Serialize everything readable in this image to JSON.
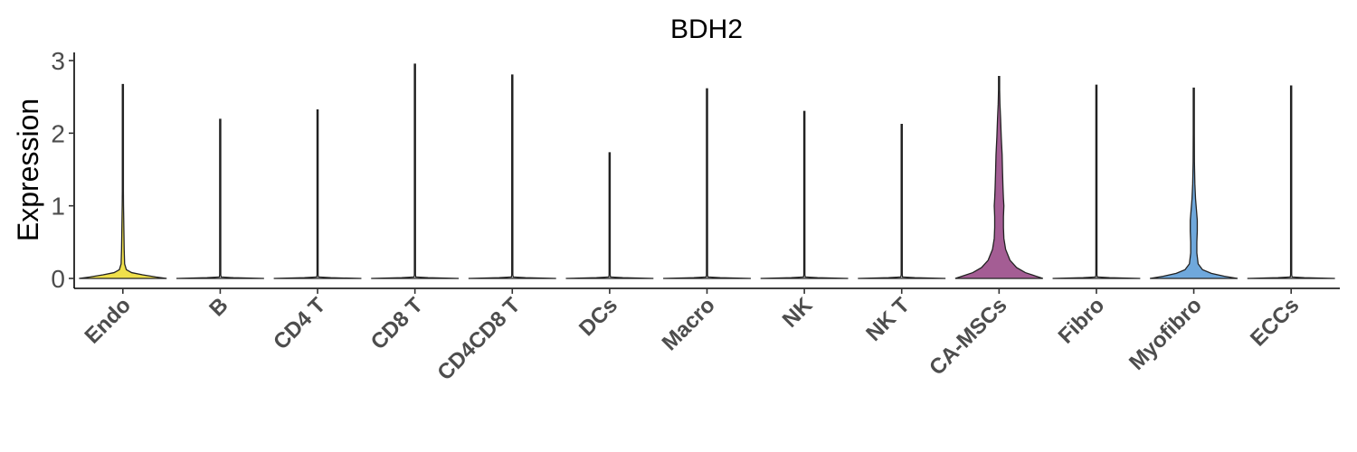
{
  "chart_data": {
    "type": "violin",
    "title": "BDH2",
    "xlabel": "",
    "ylabel": "Expression",
    "ylim": [
      -0.15,
      3.1
    ],
    "yticks": [
      0,
      1,
      2,
      3
    ],
    "grid": false,
    "legend": "none",
    "categories": [
      "Endo",
      "B",
      "CD4 T",
      "CD8 T",
      "CD4CD8 T",
      "DCs",
      "Macro",
      "NK",
      "NK T",
      "CA-MSCs",
      "Fibro",
      "Myofibro",
      "ECCs"
    ],
    "series": [
      {
        "category": "Endo",
        "max": 2.67,
        "color": "#f0e04b",
        "profile": [
          [
            0,
            1.0
          ],
          [
            0.02,
            0.75
          ],
          [
            0.05,
            0.45
          ],
          [
            0.08,
            0.2
          ],
          [
            0.12,
            0.08
          ],
          [
            0.2,
            0.04
          ],
          [
            0.4,
            0.03
          ],
          [
            0.6,
            0.025
          ],
          [
            0.8,
            0.02
          ],
          [
            1.0,
            0.015
          ],
          [
            1.2,
            0.012
          ],
          [
            1.4,
            0.01
          ],
          [
            1.6,
            0.006
          ],
          [
            1.8,
            0.003
          ],
          [
            2.67,
            0.0
          ]
        ]
      },
      {
        "category": "B",
        "max": 2.19,
        "color": "#ffffff",
        "profile": [
          [
            0,
            1.0
          ],
          [
            0.01,
            0.3
          ],
          [
            0.02,
            0.02
          ],
          [
            0.05,
            0.0
          ],
          [
            2.19,
            0.0
          ]
        ]
      },
      {
        "category": "CD4 T",
        "max": 2.32,
        "color": "#ffffff",
        "profile": [
          [
            0,
            1.0
          ],
          [
            0.01,
            0.3
          ],
          [
            0.02,
            0.02
          ],
          [
            0.05,
            0.0
          ],
          [
            2.32,
            0.0
          ]
        ]
      },
      {
        "category": "CD8 T",
        "max": 2.95,
        "color": "#ffffff",
        "profile": [
          [
            0,
            1.0
          ],
          [
            0.01,
            0.3
          ],
          [
            0.02,
            0.02
          ],
          [
            0.05,
            0.0
          ],
          [
            2.95,
            0.0
          ]
        ]
      },
      {
        "category": "CD4CD8 T",
        "max": 2.8,
        "color": "#ffffff",
        "profile": [
          [
            0,
            1.0
          ],
          [
            0.01,
            0.3
          ],
          [
            0.02,
            0.02
          ],
          [
            0.05,
            0.0
          ],
          [
            2.8,
            0.0
          ]
        ]
      },
      {
        "category": "DCs",
        "max": 1.73,
        "color": "#ffffff",
        "profile": [
          [
            0,
            1.0
          ],
          [
            0.01,
            0.3
          ],
          [
            0.02,
            0.02
          ],
          [
            0.05,
            0.0
          ],
          [
            1.73,
            0.0
          ]
        ]
      },
      {
        "category": "Macro",
        "max": 2.61,
        "color": "#ffffff",
        "profile": [
          [
            0,
            1.0
          ],
          [
            0.01,
            0.3
          ],
          [
            0.02,
            0.02
          ],
          [
            0.05,
            0.0
          ],
          [
            2.61,
            0.0
          ]
        ]
      },
      {
        "category": "NK",
        "max": 2.3,
        "color": "#ffffff",
        "profile": [
          [
            0,
            1.0
          ],
          [
            0.01,
            0.3
          ],
          [
            0.02,
            0.02
          ],
          [
            0.05,
            0.0
          ],
          [
            2.3,
            0.0
          ]
        ]
      },
      {
        "category": "NK T",
        "max": 2.12,
        "color": "#ffffff",
        "profile": [
          [
            0,
            1.0
          ],
          [
            0.01,
            0.3
          ],
          [
            0.02,
            0.02
          ],
          [
            0.05,
            0.0
          ],
          [
            2.12,
            0.0
          ]
        ]
      },
      {
        "category": "CA-MSCs",
        "max": 2.78,
        "color": "#a45d94",
        "profile": [
          [
            0,
            1.0
          ],
          [
            0.03,
            0.85
          ],
          [
            0.08,
            0.6
          ],
          [
            0.15,
            0.4
          ],
          [
            0.25,
            0.25
          ],
          [
            0.4,
            0.15
          ],
          [
            0.55,
            0.11
          ],
          [
            0.7,
            0.1
          ],
          [
            0.85,
            0.1
          ],
          [
            1.0,
            0.11
          ],
          [
            1.1,
            0.1
          ],
          [
            1.25,
            0.09
          ],
          [
            1.45,
            0.08
          ],
          [
            1.7,
            0.07
          ],
          [
            1.95,
            0.05
          ],
          [
            2.2,
            0.035
          ],
          [
            2.4,
            0.02
          ],
          [
            2.6,
            0.01
          ],
          [
            2.78,
            0.0
          ]
        ]
      },
      {
        "category": "Fibro",
        "max": 2.66,
        "color": "#ffffff",
        "profile": [
          [
            0,
            1.0
          ],
          [
            0.01,
            0.3
          ],
          [
            0.02,
            0.02
          ],
          [
            0.05,
            0.0
          ],
          [
            2.66,
            0.0
          ]
        ]
      },
      {
        "category": "Myofibro",
        "max": 2.62,
        "color": "#6fa8dc",
        "profile": [
          [
            0,
            1.0
          ],
          [
            0.03,
            0.7
          ],
          [
            0.07,
            0.4
          ],
          [
            0.12,
            0.2
          ],
          [
            0.2,
            0.1
          ],
          [
            0.35,
            0.07
          ],
          [
            0.5,
            0.07
          ],
          [
            0.65,
            0.08
          ],
          [
            0.8,
            0.08
          ],
          [
            0.95,
            0.06
          ],
          [
            1.1,
            0.04
          ],
          [
            1.3,
            0.025
          ],
          [
            1.6,
            0.015
          ],
          [
            2.0,
            0.008
          ],
          [
            2.62,
            0.0
          ]
        ]
      },
      {
        "category": "ECCs",
        "max": 2.65,
        "color": "#ffffff",
        "profile": [
          [
            0,
            1.0
          ],
          [
            0.01,
            0.3
          ],
          [
            0.02,
            0.02
          ],
          [
            0.05,
            0.0
          ],
          [
            2.65,
            0.0
          ]
        ]
      }
    ]
  }
}
